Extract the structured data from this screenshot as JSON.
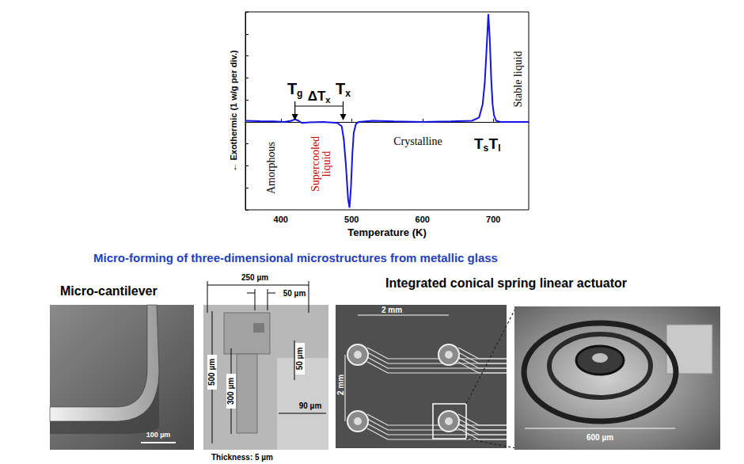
{
  "chart_data": {
    "type": "line",
    "color": "#1515e6",
    "xlabel": "Temperature (K)",
    "ylabel": "← Exothermic (1 w/g per div.)",
    "x": [
      350,
      370,
      390,
      405,
      415,
      420,
      425,
      430,
      440,
      460,
      480,
      486,
      489,
      492,
      495,
      497,
      499,
      501,
      503,
      506,
      510,
      530,
      560,
      600,
      640,
      670,
      680,
      685,
      688,
      691,
      693,
      695,
      697,
      699,
      701,
      704,
      710,
      730,
      750
    ],
    "values": [
      0.05,
      0.03,
      0.02,
      0.0,
      0.05,
      0.12,
      0.05,
      -0.05,
      -0.02,
      0.0,
      -0.05,
      -0.2,
      -0.8,
      -2.0,
      -3.5,
      -3.9,
      -3.0,
      -1.5,
      -0.5,
      -0.1,
      0.0,
      0.05,
      0.02,
      0.0,
      0.02,
      0.05,
      0.2,
      0.8,
      1.8,
      3.6,
      4.9,
      3.8,
      2.0,
      0.8,
      0.3,
      0.05,
      0.0,
      0.0,
      0.0
    ],
    "xlim": [
      350,
      750
    ],
    "xticks": [
      400,
      500,
      600,
      700
    ],
    "ylim": [
      -4,
      5
    ],
    "yticks": [
      -4,
      -3,
      -2,
      -1,
      0,
      1,
      2,
      3,
      4,
      5
    ],
    "tick_labels": "x",
    "grid": false,
    "annotations": {
      "markers": [
        {
          "text": "T",
          "sub": "g",
          "x": 420
        },
        {
          "text": "T",
          "sub": "x",
          "x": 488
        }
      ],
      "interval_label": {
        "text": "ΔT",
        "sub": "x"
      },
      "peak_labels": [
        {
          "text": "T",
          "sub": "s",
          "x": 683
        },
        {
          "text": "T",
          "sub": "l",
          "x": 702
        }
      ],
      "regions": [
        {
          "lines": [
            "Amorphous"
          ],
          "color": "#000000"
        },
        {
          "lines": [
            "Supercooled",
            "liquid"
          ],
          "color": "#cc0000"
        },
        {
          "lines": [
            "Crystalline"
          ],
          "color": "#000000"
        },
        {
          "lines": [
            "Stable liquid"
          ],
          "color": "#000000"
        }
      ]
    }
  },
  "figure": {
    "title": "Micro-forming of three-dimensional microstructures from metallic glass",
    "panels": [
      {
        "caption": "Micro-cantilever",
        "scale_bar": "100 µm"
      },
      {
        "dimensions": [
          "250 µm",
          "50 µm",
          "500 µm",
          "300 µm",
          "50 µm",
          "90 µm"
        ],
        "note": "Thickness: 5 µm"
      },
      {
        "caption": "Integrated conical spring linear actuator",
        "dimensions": [
          "2 mm",
          "2 mm"
        ]
      },
      {
        "dimensions": [
          "600 µm"
        ]
      }
    ]
  }
}
